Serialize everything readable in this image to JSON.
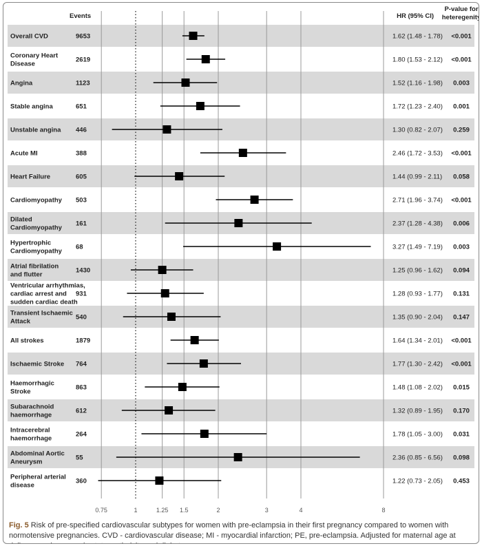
{
  "chart_data": {
    "type": "forest",
    "headers": {
      "events": "Events",
      "hr": "HR (95% CI)",
      "p": "P-value for heteregenity"
    },
    "x_scale": "log",
    "xlim": [
      0.75,
      8
    ],
    "x_ticks": [
      "0.75",
      "1",
      "1.25",
      "1.5",
      "2",
      "3",
      "4",
      "8"
    ],
    "reference_line": 1,
    "rows": [
      {
        "label": [
          "Overall CVD"
        ],
        "events": "9653",
        "hr": 1.62,
        "lo": 1.48,
        "hi": 1.78,
        "hr_text": "1.62 (1.48 - 1.78)",
        "p": "<0.001"
      },
      {
        "label": [
          "Coronary Heart",
          "Disease"
        ],
        "events": "2619",
        "hr": 1.8,
        "lo": 1.53,
        "hi": 2.12,
        "hr_text": "1.80 (1.53 - 2.12)",
        "p": "<0.001"
      },
      {
        "label": [
          "Angina"
        ],
        "events": "1123",
        "hr": 1.52,
        "lo": 1.16,
        "hi": 1.98,
        "hr_text": "1.52 (1.16 - 1.98)",
        "p": "0.003"
      },
      {
        "label": [
          "Stable angina"
        ],
        "events": "651",
        "hr": 1.72,
        "lo": 1.23,
        "hi": 2.4,
        "hr_text": "1.72 (1.23 - 2.40)",
        "p": "0.001"
      },
      {
        "label": [
          "Unstable angina"
        ],
        "events": "446",
        "hr": 1.3,
        "lo": 0.82,
        "hi": 2.07,
        "hr_text": "1.30 (0.82 - 2.07)",
        "p": "0.259"
      },
      {
        "label": [
          "Acute MI"
        ],
        "events": "388",
        "hr": 2.46,
        "lo": 1.72,
        "hi": 3.53,
        "hr_text": "2.46 (1.72 - 3.53)",
        "p": "<0.001"
      },
      {
        "label": [
          "Heart Failure"
        ],
        "events": "605",
        "hr": 1.44,
        "lo": 0.99,
        "hi": 2.11,
        "hr_text": "1.44 (0.99 - 2.11)",
        "p": "0.058"
      },
      {
        "label": [
          "Cardiomyopathy"
        ],
        "events": "503",
        "hr": 2.71,
        "lo": 1.96,
        "hi": 3.74,
        "hr_text": "2.71 (1.96 - 3.74)",
        "p": "<0.001"
      },
      {
        "label": [
          "Dilated",
          "Cardiomyopathy"
        ],
        "events": "161",
        "hr": 2.37,
        "lo": 1.28,
        "hi": 4.38,
        "hr_text": "2.37 (1.28 - 4.38)",
        "p": "0.006"
      },
      {
        "label": [
          "Hypertrophic",
          "Cardiomyopathy"
        ],
        "events": "68",
        "hr": 3.27,
        "lo": 1.49,
        "hi": 7.19,
        "hr_text": "3.27 (1.49 - 7.19)",
        "p": "0.003"
      },
      {
        "label": [
          "Atrial fibrilation",
          "and flutter"
        ],
        "events": "1430",
        "hr": 1.25,
        "lo": 0.96,
        "hi": 1.62,
        "hr_text": "1.25 (0.96 - 1.62)",
        "p": "0.094"
      },
      {
        "label": [
          "Ventricular arrhythmias,",
          "cardiac arrest and",
          "sudden cardiac death"
        ],
        "events": "931",
        "hr": 1.28,
        "lo": 0.93,
        "hi": 1.77,
        "hr_text": "1.28 (0.93 - 1.77)",
        "p": "0.131"
      },
      {
        "label": [
          "Transient Ischaemic",
          "Attack"
        ],
        "events": "540",
        "hr": 1.35,
        "lo": 0.9,
        "hi": 2.04,
        "hr_text": "1.35 (0.90 - 2.04)",
        "p": "0.147"
      },
      {
        "label": [
          "All strokes"
        ],
        "events": "1879",
        "hr": 1.64,
        "lo": 1.34,
        "hi": 2.01,
        "hr_text": "1.64 (1.34 - 2.01)",
        "p": "<0.001"
      },
      {
        "label": [
          "Ischaemic Stroke"
        ],
        "events": "764",
        "hr": 1.77,
        "lo": 1.3,
        "hi": 2.42,
        "hr_text": "1.77 (1.30 - 2.42)",
        "p": "<0.001"
      },
      {
        "label": [
          "Haemorrhagic",
          "Stroke"
        ],
        "events": "863",
        "hr": 1.48,
        "lo": 1.08,
        "hi": 2.02,
        "hr_text": "1.48 (1.08 - 2.02)",
        "p": "0.015"
      },
      {
        "label": [
          "Subarachnoid",
          "haemorrhage"
        ],
        "events": "612",
        "hr": 1.32,
        "lo": 0.89,
        "hi": 1.95,
        "hr_text": "1.32 (0.89 - 1.95)",
        "p": "0.170"
      },
      {
        "label": [
          "Intracerebral",
          "haemorrhage"
        ],
        "events": "264",
        "hr": 1.78,
        "lo": 1.05,
        "hi": 3.0,
        "hr_text": "1.78 (1.05 - 3.00)",
        "p": "0.031"
      },
      {
        "label": [
          "Abdominal Aortic",
          "Aneurysm"
        ],
        "events": "55",
        "hr": 2.36,
        "lo": 0.85,
        "hi": 6.56,
        "hr_text": "2.36 (0.85 - 6.56)",
        "p": "0.098"
      },
      {
        "label": [
          "Peripheral arterial",
          "disease"
        ],
        "events": "360",
        "hr": 1.22,
        "lo": 0.73,
        "hi": 2.05,
        "hr_text": "1.22 (0.73 - 2.05)",
        "p": "0.453"
      }
    ],
    "colors": {
      "band": "#d9d9d9",
      "marker": "#000000"
    }
  },
  "caption": {
    "label": "Fig. 5",
    "text": " Risk of pre-specified cardiovascular subtypes for women with pre-eclampsia in their first pregnancy compared to women with normotensive pregnancies. CVD - cardiovascular disease; MI - myocardial infarction; PE, pre-eclampsia. Adjusted for maternal age at delivery, socioeconomic status, ethnicity and diabetes"
  }
}
